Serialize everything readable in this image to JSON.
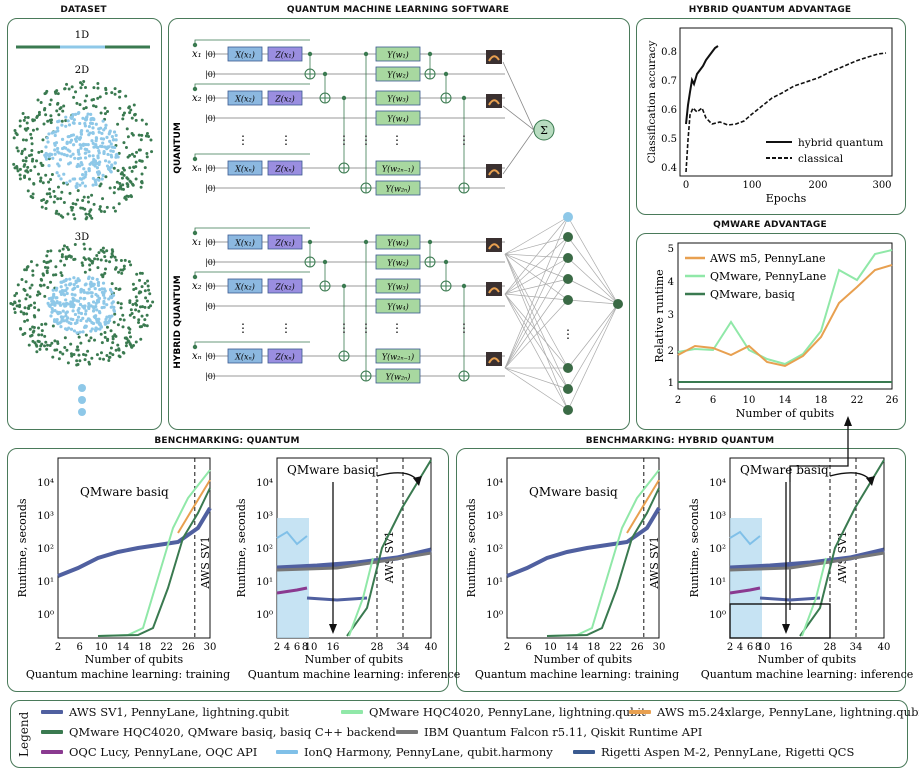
{
  "titles": {
    "dataset": "DATASET",
    "qml": "QUANTUM MACHINE LEARNING SOFTWARE",
    "hqa": "HYBRID QUANTUM ADVANTAGE",
    "qmware": "QMWARE ADVANTAGE",
    "bench_q": "BENCHMARKING: QUANTUM",
    "bench_hq": "BENCHMARKING: HYBRID QUANTUM"
  },
  "dataset": {
    "d1": "1D",
    "d2": "2D",
    "d3": "3D"
  },
  "circuit": {
    "quantum_label": "QUANTUM",
    "hybrid_label": "HYBRID QUANTUM",
    "rows": [
      {
        "x": "x₁",
        "ket": "|0⟩",
        "gx": "X(x₁)",
        "gz": "Z(x₁)",
        "y1": "Y(w₁)",
        "y2": "Y(w₂)"
      },
      {
        "x": "x₂",
        "ket": "|0⟩",
        "gx": "X(x₂)",
        "gz": "Z(x₂)",
        "y1": "Y(w₃)",
        "y2": "Y(w₄)"
      },
      {
        "x": "xₙ",
        "ket": "|0⟩",
        "gx": "X(xₙ)",
        "gz": "Z(xₙ)",
        "y1": "Y(w₂ₙ₋₁)",
        "y2": "Y(w₂ₙ)"
      }
    ],
    "dots": "⋮",
    "sum": "Σ"
  },
  "hqa_chart": {
    "ylabel": "Classification accuracy",
    "xlabel": "Epochs",
    "xticks": [
      "0",
      "100",
      "200",
      "300"
    ],
    "yticks": [
      "0.4",
      "0.5",
      "0.6",
      "0.7",
      "0.8"
    ],
    "legend": [
      "hybrid quantum",
      "classical"
    ]
  },
  "qmware_chart": {
    "ylabel": "Relative runtime",
    "xlabel": "Number of qubits",
    "xticks": [
      "2",
      "6",
      "10",
      "14",
      "18",
      "22",
      "26"
    ],
    "yticks": [
      "1",
      "2",
      "3",
      "4",
      "5"
    ],
    "legend": [
      "AWS m5, PennyLane",
      "QMware, PennyLane",
      "QMware, basiq"
    ],
    "colors": [
      "#e8a050",
      "#90e8a8",
      "#3a7a50"
    ]
  },
  "bench": {
    "ylabel": "Runtime, seconds",
    "xlabel": "Number of qubits",
    "yticks": [
      "10⁴",
      "10³",
      "10²",
      "10¹",
      "10⁰"
    ],
    "train_xticks": [
      "2",
      "6",
      "10",
      "14",
      "18",
      "22",
      "26",
      "30"
    ],
    "inf_xticks": [
      "2",
      "4",
      "6",
      "8",
      "10",
      "16",
      "28",
      "34",
      "40"
    ],
    "basiq_label": "QMware basiq",
    "aws_label": "AWS SV1",
    "train_caption": "Quantum machine learning: training",
    "inf_caption": "Quantum machine learning: inference"
  },
  "legend": {
    "title": "Legend",
    "items": [
      {
        "label": "AWS SV1, PennyLane, lightning.qubit",
        "color": "#5060a0"
      },
      {
        "label": "QMware HQC4020, PennyLane, lightning.qubit",
        "color": "#90e8a8"
      },
      {
        "label": "AWS m5.24xlarge, PennyLane, lightning.qubit",
        "color": "#e8a050"
      },
      {
        "label": "QMware HQC4020, QMware basiq, basiq C++ backend",
        "color": "#3a7a50"
      },
      {
        "label": "IBM Quantum Falcon r5.11, Qiskit Runtime API",
        "color": "#777777"
      },
      {
        "label": "OQC Lucy, PennyLane, OQC API",
        "color": "#8a3a90"
      },
      {
        "label": "IonQ Harmony, PennyLane, qubit.harmony",
        "color": "#80c0e8"
      },
      {
        "label": "Rigetti Aspen M-2, PennyLane, Rigetti QCS",
        "color": "#3a5a90"
      }
    ]
  }
}
